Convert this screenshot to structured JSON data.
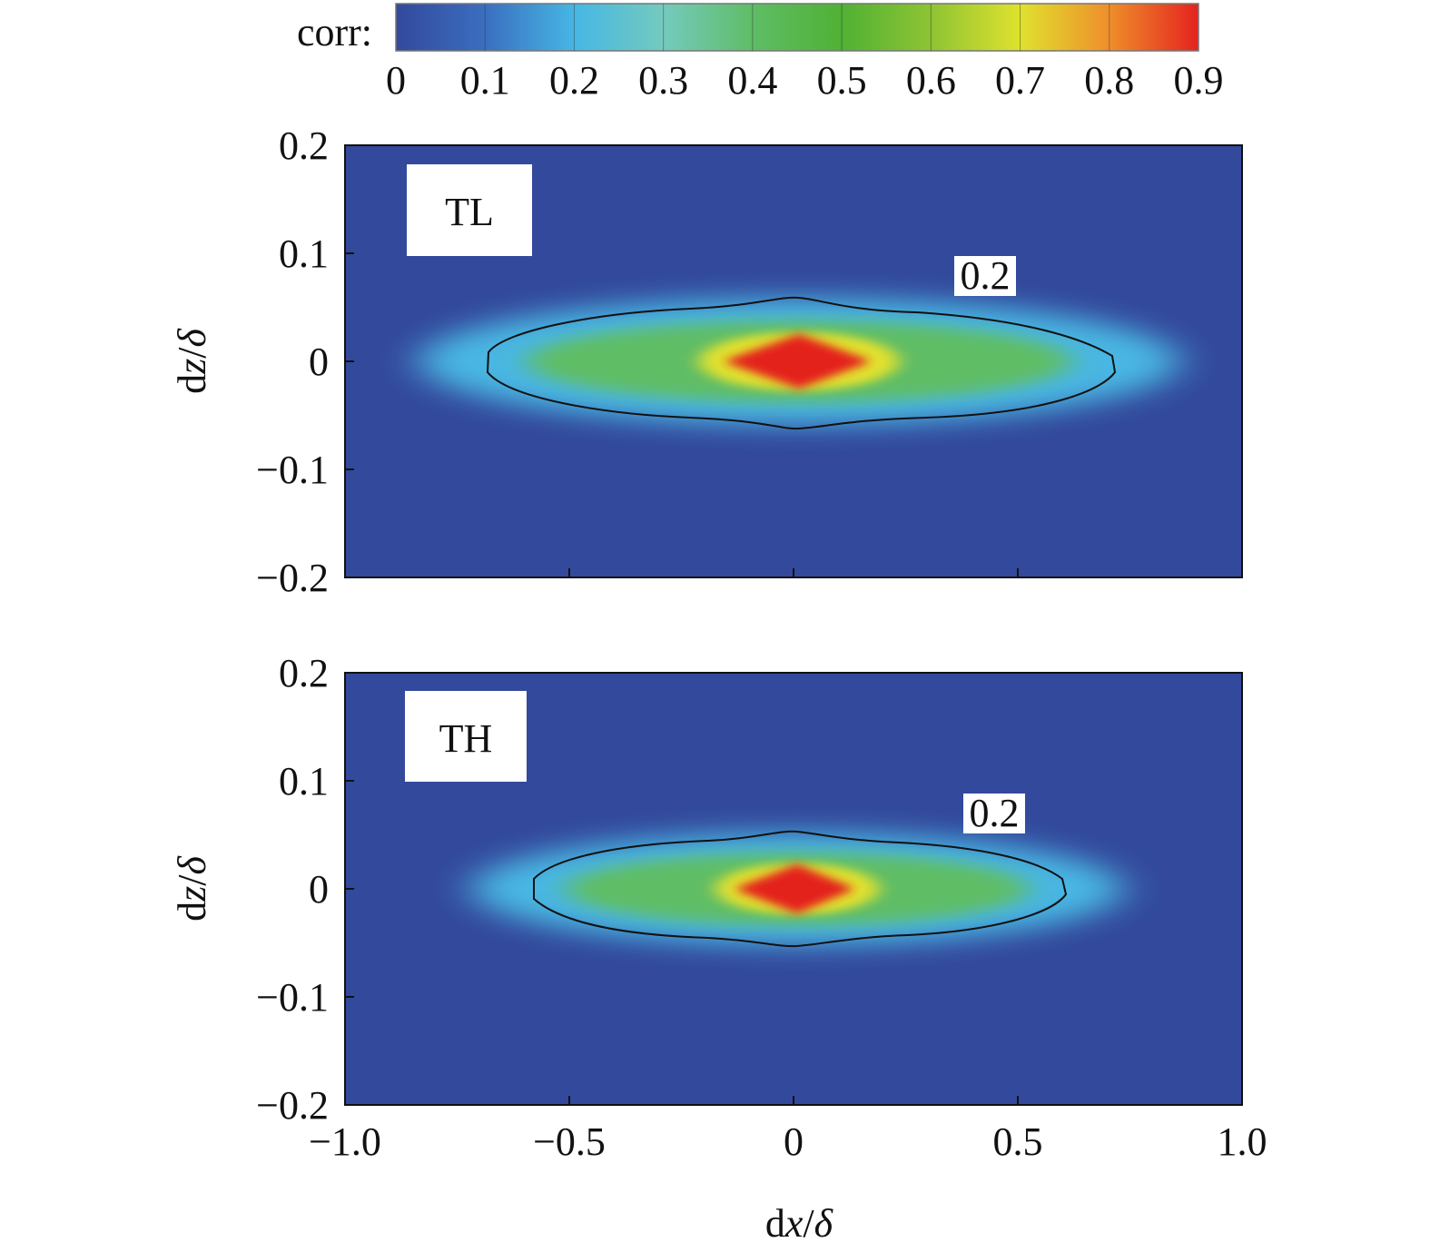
{
  "chart_data": {
    "type": "heatmap",
    "colorbar": {
      "label": "corr:",
      "range": [
        0,
        0.9
      ],
      "ticks": [
        0,
        0.1,
        0.2,
        0.3,
        0.4,
        0.5,
        0.6,
        0.7,
        0.8,
        0.9
      ],
      "tick_labels": [
        "0",
        "0.1",
        "0.2",
        "0.3",
        "0.4",
        "0.5",
        "0.6",
        "0.7",
        "0.8",
        "0.9"
      ],
      "colors": [
        "#33499c",
        "#3b6ec0",
        "#46b7e4",
        "#74cabe",
        "#5fbd66",
        "#50b134",
        "#8ec433",
        "#dfe22e",
        "#ef8e2b",
        "#e4231f"
      ]
    },
    "xlabel": "dx/δ",
    "ylabel": "dz/δ",
    "xlim": [
      -1.0,
      1.0
    ],
    "ylim": [
      -0.2,
      0.2
    ],
    "xticks": [
      -1.0,
      -0.5,
      0,
      0.5,
      1.0
    ],
    "xtick_labels": [
      "−1.0",
      "−0.5",
      "0",
      "0.5",
      "1.0"
    ],
    "yticks": [
      0.2,
      0.1,
      0,
      -0.1,
      -0.2
    ],
    "ytick_labels": [
      "0.2",
      "0.1",
      "0",
      "−0.1",
      "−0.2"
    ],
    "panels": [
      {
        "label": "TL",
        "peak": 0.9,
        "contour_level": 0.2,
        "contour_label": "0.2",
        "contour_x_extent": [
          -0.7,
          0.71
        ],
        "contour_z_extent": [
          -0.062,
          0.06
        ]
      },
      {
        "label": "TH",
        "peak": 0.9,
        "contour_level": 0.2,
        "contour_label": "0.2",
        "contour_x_extent": [
          -0.6,
          0.6
        ],
        "contour_z_extent": [
          -0.055,
          0.052
        ]
      }
    ]
  }
}
